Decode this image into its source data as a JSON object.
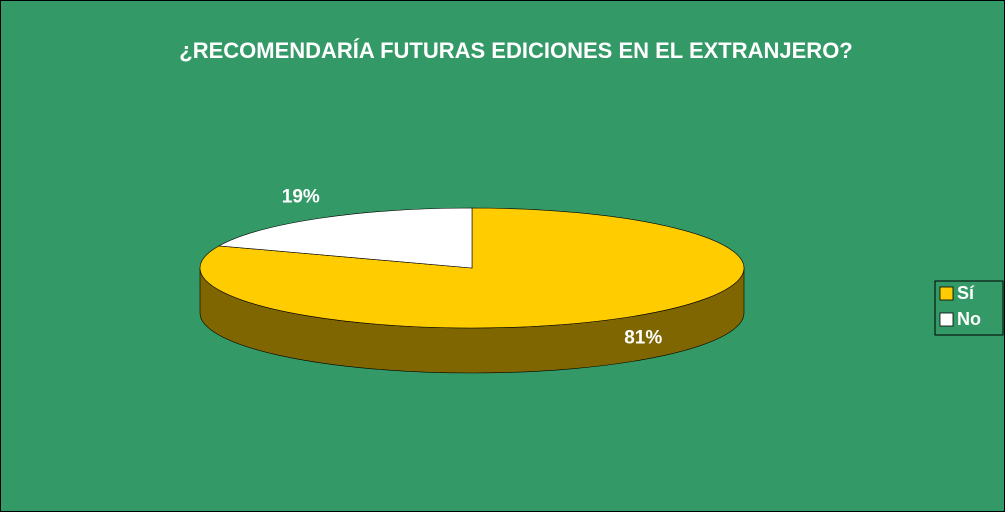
{
  "chart_data": {
    "type": "pie3d",
    "title": "¿RECOMENDARÍA FUTURAS EDICIONES EN EL EXTRANJERO?",
    "categories": [
      "Sí",
      "No"
    ],
    "values": [
      81,
      19
    ],
    "value_labels": [
      "81%",
      "19%"
    ],
    "colors": [
      "#ffcc00",
      "#ffffff"
    ],
    "legend": "right"
  }
}
